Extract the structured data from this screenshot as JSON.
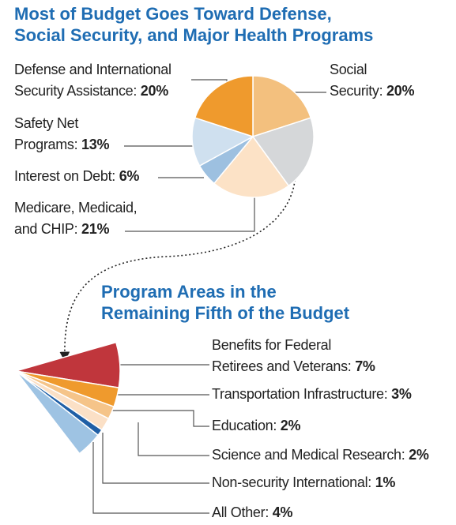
{
  "chart_data": [
    {
      "type": "pie",
      "title": "Most of Budget Goes Toward Defense,\nSocial Security, and Major Health Programs",
      "categories": [
        "Social\nSecurity:",
        null,
        "Medicare, Medicaid,\nand CHIP:",
        "Interest on Debt:",
        "Safety Net\nPrograms:",
        "Defense and International\nSecurity Assistance:"
      ],
      "values": [
        20,
        20,
        21,
        6,
        13,
        20
      ],
      "value_labels": [
        "20%",
        null,
        "21%",
        "6%",
        "13%",
        "20%"
      ],
      "colors": [
        "#f3c07e",
        "#d5d7d9",
        "#fce2c6",
        "#9dc0e0",
        "#cfe0ef",
        "#ef9a2d"
      ]
    },
    {
      "type": "pie",
      "title": "Program Areas in the\nRemaining Fifth of the Budget",
      "categories": [
        "Benefits for Federal\nRetirees and Veterans:",
        "Transportation Infrastructure:",
        "Education:",
        "Science and Medical Research:",
        "Non-security International:",
        "All Other:"
      ],
      "values": [
        7,
        3,
        2,
        2,
        1,
        4
      ],
      "value_labels": [
        "7%",
        "3%",
        "2%",
        "2%",
        "1%",
        "4%"
      ],
      "colors": [
        "#c0363c",
        "#ef9a2d",
        "#f5c489",
        "#fbe0c6",
        "#1f5fa6",
        "#9ec3e3"
      ]
    }
  ]
}
